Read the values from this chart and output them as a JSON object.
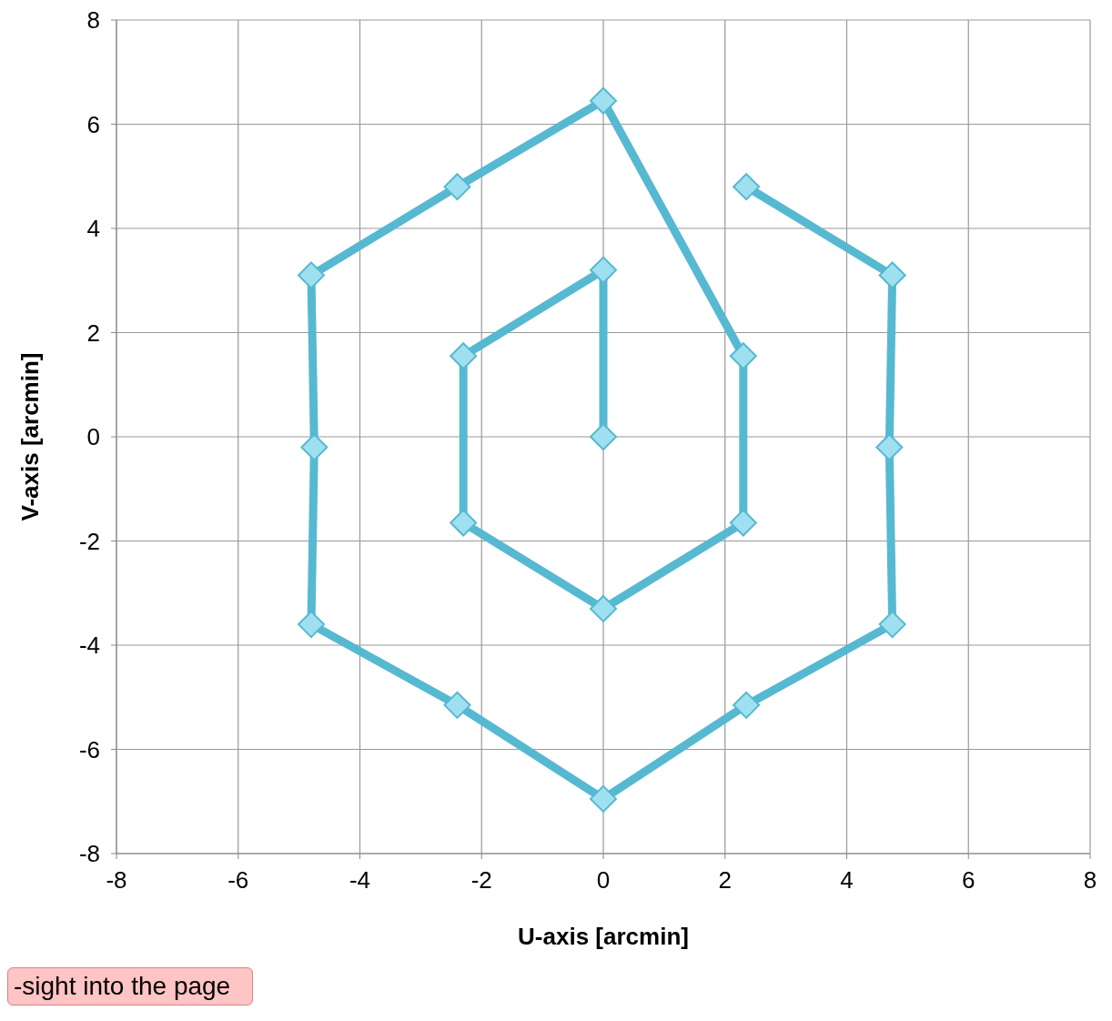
{
  "chart_data": {
    "type": "line",
    "xlabel": "U-axis [arcmin]",
    "ylabel": "V-axis [arcmin]",
    "annotations": [
      "-sight into the page"
    ],
    "series": [
      {
        "color": "#56b9d1",
        "x": [
          0,
          0,
          -2.3,
          -2.3,
          0,
          2.3,
          2.3,
          0,
          -2.4,
          -4.8,
          -4.75,
          -4.8,
          -2.4,
          0,
          2.35,
          4.75,
          4.7,
          4.75,
          2.35
        ],
        "values": [
          0,
          3.2,
          1.55,
          -1.65,
          -3.3,
          -1.65,
          1.55,
          6.45,
          4.8,
          3.1,
          -0.2,
          -3.6,
          -5.15,
          -6.95,
          -5.15,
          -3.6,
          -0.2,
          3.1,
          4.8
        ]
      }
    ],
    "xlim": [
      -8,
      8
    ],
    "xticks": [
      -8,
      -6,
      -4,
      -2,
      0,
      2,
      4,
      6,
      8
    ],
    "ylim": [
      -8,
      8
    ],
    "yticks": [
      -8,
      -6,
      -4,
      -2,
      0,
      2,
      4,
      6,
      8
    ],
    "grid": true,
    "legend": false,
    "marker": "diamond",
    "line_style": "solid"
  }
}
